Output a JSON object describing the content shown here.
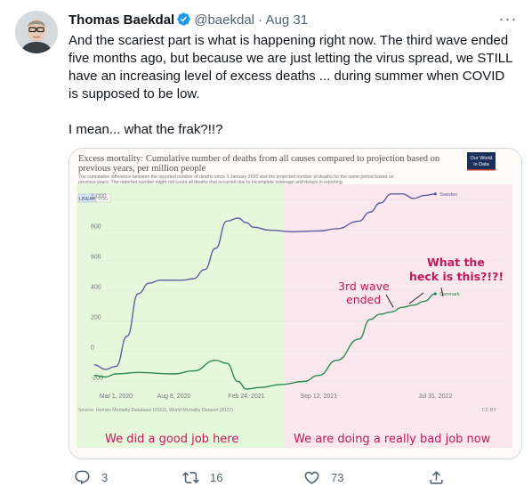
{
  "tweet": {
    "author_name": "Thomas Baekdal",
    "handle": "@baekdal",
    "date": "Aug 31",
    "separator": "·",
    "more_glyph": "···",
    "paragraphs": [
      "And the scariest part is what is happening right now. The third wave ended five months ago, but because we are just letting the virus spread, we STILL have an increasing level of excess deaths ... during summer when COVID is supposed to be low.",
      "I mean... what the frak?!!?"
    ]
  },
  "chart": {
    "title": "Excess mortality: Cumulative number of deaths from all causes compared to projection based on previous years, per million people",
    "subtitle_1": "The cumulative difference between the reported number of deaths since 1 January 2020 and the projected number of deaths for the same period based on",
    "subtitle_2": "previous years. The reported number might not count all deaths that occurred due to incomplete coverage and delays in reporting.",
    "logo_line1": "Our World",
    "logo_line2": "in Data",
    "toggle_linear": "LINEAR",
    "toggle_log": "LOG",
    "source": "Source: Human Mortality Database (2022), World Mortality Dataset (2022)",
    "license": "CC BY",
    "annotations": {
      "wave_line1": "3rd wave",
      "wave_line2": "ended",
      "heck_line1": "What the",
      "heck_line2": "heck is this?!?!",
      "good_job": "We did a good job here",
      "bad_job": "We are doing a really bad job now"
    },
    "colors": {
      "green_zone": "#e6f8dc",
      "pink_zone": "#fbe8ee",
      "sweden": "#5b5fa0",
      "denmark": "#2a8a50",
      "annotation": "#c2185b",
      "title": "#555555"
    }
  },
  "chart_data": {
    "type": "line",
    "title": "Excess mortality: Cumulative number of deaths from all causes compared to projection based on previous years, per million people",
    "x_ticks": [
      "Mar 1, 2020",
      "Aug 8, 2020",
      "Feb 24, 2021",
      "Sep 12, 2021",
      "Jul 31, 2022"
    ],
    "y_ticks": [
      -200,
      0,
      200,
      400,
      600,
      800,
      "1,000"
    ],
    "ylim": [
      -250,
      1080
    ],
    "grid": true,
    "series": [
      {
        "name": "Sweden",
        "points": [
          [
            "2020-01-01",
            -90
          ],
          [
            "2020-02-01",
            -120
          ],
          [
            "2020-03-01",
            -100
          ],
          [
            "2020-04-01",
            100
          ],
          [
            "2020-05-01",
            380
          ],
          [
            "2020-06-01",
            450
          ],
          [
            "2020-07-01",
            470
          ],
          [
            "2020-08-08",
            470
          ],
          [
            "2020-09-01",
            470
          ],
          [
            "2020-10-01",
            480
          ],
          [
            "2020-11-01",
            540
          ],
          [
            "2020-12-01",
            680
          ],
          [
            "2021-01-01",
            860
          ],
          [
            "2021-02-01",
            880
          ],
          [
            "2021-02-24",
            850
          ],
          [
            "2021-03-15",
            820
          ],
          [
            "2021-05-01",
            800
          ],
          [
            "2021-07-01",
            790
          ],
          [
            "2021-09-12",
            795
          ],
          [
            "2021-11-01",
            810
          ],
          [
            "2022-01-01",
            860
          ],
          [
            "2022-02-01",
            920
          ],
          [
            "2022-03-01",
            980
          ],
          [
            "2022-04-01",
            1040
          ],
          [
            "2022-05-01",
            1040
          ],
          [
            "2022-06-01",
            1010
          ],
          [
            "2022-07-01",
            1030
          ],
          [
            "2022-07-31",
            1040
          ]
        ]
      },
      {
        "name": "Denmark",
        "points": [
          [
            "2020-01-01",
            -160
          ],
          [
            "2020-02-01",
            -170
          ],
          [
            "2020-03-01",
            -150
          ],
          [
            "2020-05-01",
            -140
          ],
          [
            "2020-08-08",
            -150
          ],
          [
            "2020-10-01",
            -130
          ],
          [
            "2020-12-01",
            -60
          ],
          [
            "2021-01-01",
            -80
          ],
          [
            "2021-02-01",
            -200
          ],
          [
            "2021-02-24",
            -250
          ],
          [
            "2021-04-01",
            -240
          ],
          [
            "2021-06-01",
            -220
          ],
          [
            "2021-08-01",
            -200
          ],
          [
            "2021-09-12",
            -160
          ],
          [
            "2021-11-01",
            -60
          ],
          [
            "2022-01-01",
            80
          ],
          [
            "2022-02-01",
            210
          ],
          [
            "2022-03-01",
            245
          ],
          [
            "2022-04-01",
            260
          ],
          [
            "2022-05-01",
            290
          ],
          [
            "2022-06-01",
            305
          ],
          [
            "2022-07-01",
            330
          ],
          [
            "2022-07-31",
            380
          ]
        ]
      }
    ]
  },
  "actions": {
    "reply_count": "3",
    "retweet_count": "16",
    "like_count": "73"
  }
}
